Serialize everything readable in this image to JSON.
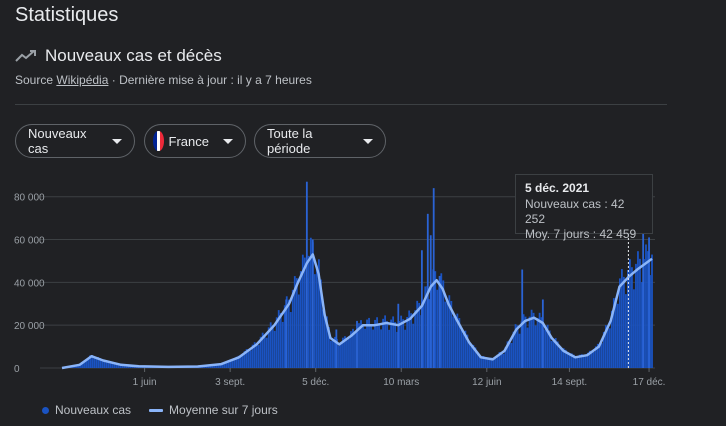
{
  "header": {
    "title": "Statistiques",
    "subtitle": "Nouveaux cas et décès",
    "source_prefix": "Source",
    "source_link": "Wikipédia",
    "updated": "· Dernière mise à jour : il y a 7 heures"
  },
  "filters": {
    "metric": "Nouveaux cas",
    "country": "France",
    "period": "Toute la période"
  },
  "colors": {
    "bars": "#1a53c2",
    "average_line": "#8ab4f8",
    "flag": [
      "#002395",
      "#ffffff",
      "#ed2939"
    ]
  },
  "tooltip": {
    "date": "5 déc. 2021",
    "cases": "Nouveaux cas : 42 252",
    "avg": "Moy. 7 jours : 42 459"
  },
  "legend": {
    "cases": "Nouveaux cas",
    "avg": "Moyenne sur 7 jours"
  },
  "chart_data": {
    "type": "bar",
    "y_ticks": [
      0,
      20000,
      40000,
      60000,
      80000
    ],
    "y_tick_labels": [
      "0",
      "20 000",
      "40 000",
      "60 000",
      "80 000"
    ],
    "ylim": [
      0,
      85000
    ],
    "x_tick_labels": [
      "1 juin",
      "3 sept.",
      "5 déc.",
      "10 mars",
      "12 juin",
      "14 sept.",
      "17 déc."
    ],
    "grid": true,
    "legend_position": "bottom-left",
    "avg_points": [
      [
        0.0,
        0
      ],
      [
        0.03,
        1500
      ],
      [
        0.05,
        5500
      ],
      [
        0.07,
        3500
      ],
      [
        0.1,
        1500
      ],
      [
        0.13,
        800
      ],
      [
        0.18,
        500
      ],
      [
        0.23,
        700
      ],
      [
        0.27,
        1800
      ],
      [
        0.3,
        5000
      ],
      [
        0.33,
        11000
      ],
      [
        0.36,
        20000
      ],
      [
        0.385,
        30000
      ],
      [
        0.4,
        40000
      ],
      [
        0.415,
        49000
      ],
      [
        0.425,
        53000
      ],
      [
        0.435,
        44000
      ],
      [
        0.445,
        25000
      ],
      [
        0.455,
        14000
      ],
      [
        0.47,
        11000
      ],
      [
        0.49,
        15000
      ],
      [
        0.51,
        20000
      ],
      [
        0.53,
        20000
      ],
      [
        0.55,
        21000
      ],
      [
        0.57,
        20000
      ],
      [
        0.59,
        23000
      ],
      [
        0.61,
        29000
      ],
      [
        0.625,
        38000
      ],
      [
        0.635,
        41000
      ],
      [
        0.645,
        37000
      ],
      [
        0.655,
        30000
      ],
      [
        0.67,
        22000
      ],
      [
        0.69,
        12000
      ],
      [
        0.71,
        5000
      ],
      [
        0.73,
        4000
      ],
      [
        0.75,
        8000
      ],
      [
        0.77,
        18000
      ],
      [
        0.785,
        22000
      ],
      [
        0.8,
        23500
      ],
      [
        0.815,
        21000
      ],
      [
        0.83,
        14000
      ],
      [
        0.85,
        8000
      ],
      [
        0.87,
        5000
      ],
      [
        0.89,
        6000
      ],
      [
        0.91,
        10000
      ],
      [
        0.93,
        22000
      ],
      [
        0.945,
        38000
      ],
      [
        0.96,
        42459
      ],
      [
        0.975,
        46000
      ],
      [
        1.0,
        51000
      ]
    ],
    "spikes": [
      [
        0.415,
        87000
      ],
      [
        0.425,
        60000
      ],
      [
        0.61,
        55000
      ],
      [
        0.62,
        72000
      ],
      [
        0.625,
        62000
      ],
      [
        0.63,
        84000
      ],
      [
        0.64,
        43000
      ],
      [
        0.78,
        46000
      ],
      [
        0.815,
        32000
      ],
      [
        0.985,
        66000
      ],
      [
        0.995,
        61000
      ],
      [
        0.38,
        32000
      ],
      [
        0.57,
        30000
      ],
      [
        0.5,
        22000
      ],
      [
        0.465,
        18000
      ]
    ]
  }
}
